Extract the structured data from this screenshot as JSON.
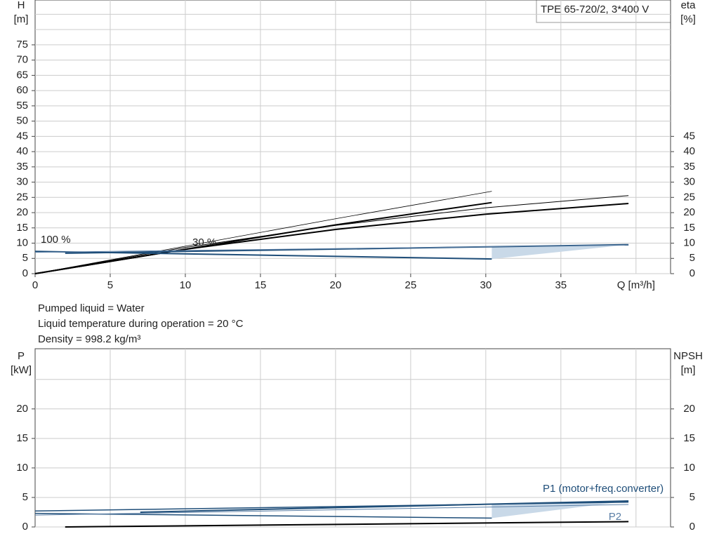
{
  "chart_data": [
    {
      "type": "line",
      "pump": "TPE 65-720/2, 3*400 V",
      "y_label": "H",
      "y_unit": "[m]",
      "y2_label": "eta",
      "y2_unit": "[%]",
      "x_label": "Q [m³/h]",
      "xlim": [
        0,
        42.3
      ],
      "ylim": [
        0,
        89.7
      ],
      "y2lim": [
        0,
        89.7
      ],
      "xticks": [
        0,
        5,
        10,
        15,
        20,
        25,
        30,
        35
      ],
      "xgrid": [
        5,
        10,
        15,
        20,
        25,
        30,
        35,
        40
      ],
      "yticks": [
        0,
        5,
        10,
        15,
        20,
        25,
        30,
        35,
        40,
        45,
        50,
        55,
        60,
        65,
        70,
        75
      ],
      "ygrid": [
        80,
        85
      ],
      "y2ticks": [
        0,
        5,
        10,
        15,
        20,
        25,
        30,
        35,
        40,
        45
      ],
      "annotations": [
        "100 %",
        "30 %"
      ],
      "series": [
        {
          "color": "#000000",
          "width": 2,
          "x": [
            0,
            10,
            20,
            30,
            39.5
          ],
          "values": [
            0,
            8,
            14.5,
            19.5,
            23
          ]
        },
        {
          "color": "#000000",
          "width": 1,
          "x": [
            0,
            10,
            20,
            30,
            39.5
          ],
          "values": [
            0,
            8.6,
            15.8,
            21.6,
            25.6
          ]
        },
        {
          "color": "#000000",
          "width": 2,
          "x": [
            0,
            10,
            20,
            30.4
          ],
          "values": [
            0,
            8,
            16,
            23.3
          ]
        },
        {
          "color": "#000000",
          "width": 0.8,
          "x": [
            0,
            10,
            20,
            30.4
          ],
          "values": [
            0,
            9,
            18,
            27
          ]
        },
        {
          "color": "#1f4e79",
          "width": 2,
          "x": [
            2,
            39.5
          ],
          "values": [
            6.7,
            9.5
          ]
        },
        {
          "color": "#1f4e79",
          "width": 2,
          "x": [
            0,
            30.4
          ],
          "values": [
            7.3,
            4.8
          ]
        },
        {
          "color": "#5b7fa6",
          "width": 1,
          "x": [
            0,
            39.5
          ],
          "values": [
            7,
            9.4
          ]
        }
      ]
    },
    {
      "type": "line",
      "y_label": "P",
      "y_unit": "[kW]",
      "y2_label": "NPSH",
      "y2_unit": "[m]",
      "xlim": [
        0,
        42.3
      ],
      "ylim": [
        0,
        30.2
      ],
      "y2lim": [
        0,
        30.2
      ],
      "xgrid": [
        5,
        10,
        15,
        20,
        25,
        30,
        35,
        40
      ],
      "yticks": [
        0,
        5,
        10,
        15,
        20
      ],
      "ygrid": [
        25
      ],
      "y2ticks": [
        0,
        5,
        10,
        15,
        20
      ],
      "series": [
        {
          "name": "P1 (motor+freq.converter)",
          "color": "#1f4e79",
          "width": 2,
          "x": [
            7,
            39.5
          ],
          "values": [
            2.5,
            4.4
          ]
        },
        {
          "color": "#1f4e79",
          "width": 1.5,
          "x": [
            0,
            39.5
          ],
          "values": [
            2.7,
            4.2
          ]
        },
        {
          "color": "#1f4e79",
          "width": 1.5,
          "x": [
            0,
            30.4
          ],
          "values": [
            2.3,
            1.5
          ]
        },
        {
          "name": "P2",
          "color": "#5b7fa6",
          "width": 1,
          "x": [
            0,
            39.5
          ],
          "values": [
            2.0,
            3.8
          ]
        },
        {
          "color": "#000000",
          "width": 2,
          "x": [
            2,
            39.5
          ],
          "values": [
            0,
            0.9
          ]
        }
      ]
    }
  ],
  "notes": [
    "Pumped liquid = Water",
    "Liquid temperature during operation = 20 °C",
    "Density = 998.2 kg/m³"
  ]
}
